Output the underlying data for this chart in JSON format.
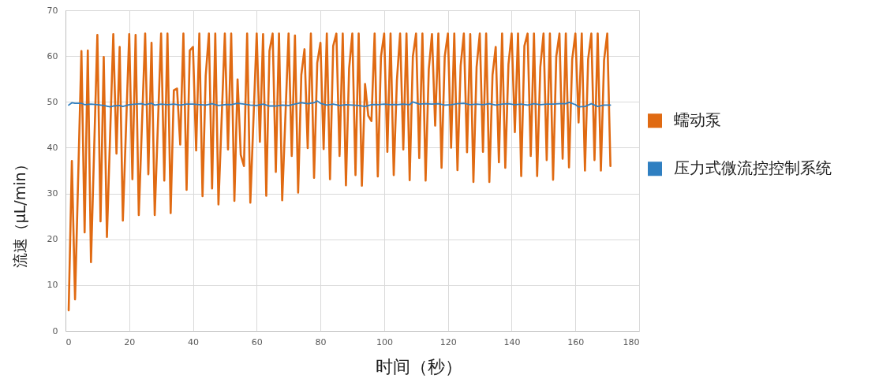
{
  "chart_data": {
    "type": "line",
    "xlabel": "时间（秒）",
    "ylabel": "流速（μL/min）",
    "xlim": [
      0,
      180
    ],
    "xticks": [
      0,
      20,
      40,
      60,
      80,
      100,
      120,
      140,
      160,
      180
    ],
    "ylim": [
      0,
      70
    ],
    "yticks": [
      0,
      10,
      20,
      30,
      40,
      50,
      60,
      70
    ],
    "grid": true,
    "legend": "right",
    "marker": "none",
    "line_style": "solid",
    "series": [
      {
        "name": "蠕动泵",
        "color": "#e06a12",
        "x": [
          1,
          2,
          3,
          5,
          6,
          7,
          8,
          10,
          11,
          12,
          13,
          15,
          16,
          17,
          18,
          20,
          21,
          22,
          23,
          25,
          26,
          27,
          28,
          30,
          31,
          32,
          33,
          34,
          35,
          36,
          37,
          38,
          39,
          40,
          41,
          42,
          43,
          44,
          45,
          46,
          47,
          48,
          50,
          51,
          52,
          53,
          54,
          55,
          56,
          57,
          58,
          60,
          61,
          62,
          63,
          64,
          65,
          66,
          67,
          68,
          70,
          71,
          72,
          73,
          74,
          75,
          76,
          77,
          78,
          79,
          80,
          81,
          82,
          83,
          84,
          85,
          86,
          87,
          88,
          89,
          90,
          91,
          92,
          93,
          94,
          95,
          96,
          97,
          98,
          99,
          100,
          101,
          102,
          103,
          104,
          105,
          106,
          107,
          108,
          109,
          110,
          111,
          112,
          113,
          114,
          115,
          116,
          117,
          118,
          119,
          120,
          121,
          122,
          123,
          124,
          125,
          126,
          127,
          128,
          129,
          130,
          131,
          132,
          133,
          134,
          135,
          136,
          137,
          138,
          139,
          140,
          141,
          142,
          143,
          144,
          145,
          146,
          147,
          148,
          149,
          150,
          151,
          152,
          153,
          154,
          155,
          156,
          157,
          158,
          159,
          160,
          161,
          162,
          163,
          164,
          165,
          166,
          167,
          168,
          169,
          170,
          171
        ],
        "values": [
          4.5,
          37.1,
          6.9,
          61.1,
          21.5,
          61.2,
          15.0,
          64.6,
          23.9,
          59.8,
          20.5,
          64.8,
          38.7,
          62.0,
          24.1,
          64.8,
          33.1,
          64.6,
          25.3,
          64.9,
          34.2,
          62.9,
          25.3,
          64.9,
          32.8,
          64.9,
          25.7,
          52.5,
          52.9,
          40.7,
          64.9,
          30.8,
          61.2,
          62.0,
          39.4,
          64.9,
          29.4,
          55.7,
          64.9,
          31.1,
          64.9,
          27.6,
          64.9,
          39.6,
          64.9,
          28.4,
          54.9,
          38.4,
          36.0,
          64.9,
          28.0,
          64.9,
          41.3,
          64.8,
          29.5,
          61.1,
          64.9,
          34.7,
          64.9,
          28.5,
          64.9,
          38.2,
          64.5,
          30.2,
          55.9,
          61.5,
          39.9,
          64.9,
          33.4,
          58.5,
          62.9,
          39.7,
          64.9,
          33.1,
          62.2,
          64.9,
          38.2,
          64.9,
          31.8,
          57.3,
          64.9,
          34.0,
          64.9,
          31.7,
          53.9,
          47.0,
          45.8,
          64.9,
          33.7,
          59.9,
          64.9,
          39.1,
          64.9,
          34.0,
          54.8,
          64.9,
          39.6,
          64.9,
          32.9,
          59.9,
          64.9,
          37.7,
          64.9,
          32.8,
          57.1,
          64.8,
          44.8,
          64.9,
          35.6,
          59.9,
          64.9,
          40.0,
          64.9,
          35.1,
          57.9,
          64.9,
          39.0,
          64.8,
          32.5,
          57.6,
          64.9,
          39.1,
          64.9,
          32.5,
          55.9,
          62.0,
          36.8,
          64.9,
          35.6,
          58.2,
          64.9,
          43.4,
          64.9,
          33.8,
          62.2,
          64.9,
          38.2,
          64.9,
          33.8,
          57.6,
          64.9,
          37.3,
          64.9,
          33.0,
          59.9,
          64.9,
          37.6,
          64.9,
          35.7,
          59.3,
          64.9,
          45.5,
          64.9,
          35.0,
          59.3,
          64.9,
          37.3,
          64.9,
          35.0,
          59.1,
          64.9,
          36.0
        ]
      },
      {
        "name": "压力式微流控控制系统",
        "color": "#2f7fc1",
        "x": [
          1,
          2,
          3,
          5,
          6,
          8,
          10,
          12,
          14,
          15,
          17,
          18,
          20,
          22,
          24,
          25,
          27,
          28,
          30,
          32,
          34,
          36,
          38,
          40,
          42,
          44,
          46,
          48,
          50,
          52,
          54,
          56,
          58,
          60,
          62,
          64,
          66,
          68,
          70,
          72,
          74,
          76,
          78,
          79,
          80,
          82,
          84,
          86,
          88,
          90,
          92,
          94,
          96,
          98,
          100,
          102,
          104,
          106,
          108,
          109,
          111,
          113,
          115,
          117,
          119,
          121,
          123,
          125,
          127,
          129,
          131,
          133,
          135,
          137,
          139,
          141,
          143,
          145,
          147,
          149,
          151,
          153,
          155,
          157,
          158,
          160,
          161,
          163,
          165,
          167,
          169,
          171
        ],
        "values": [
          49.3,
          49.8,
          49.7,
          49.7,
          49.4,
          49.5,
          49.4,
          49.2,
          48.9,
          49.1,
          49.2,
          49.0,
          49.4,
          49.5,
          49.6,
          49.4,
          49.7,
          49.3,
          49.5,
          49.4,
          49.5,
          49.3,
          49.5,
          49.5,
          49.4,
          49.3,
          49.6,
          49.2,
          49.4,
          49.4,
          49.7,
          49.5,
          49.3,
          49.2,
          49.5,
          49.1,
          49.1,
          49.3,
          49.2,
          49.5,
          49.8,
          49.6,
          49.8,
          50.2,
          49.7,
          49.3,
          49.5,
          49.2,
          49.4,
          49.3,
          49.2,
          49.0,
          49.4,
          49.4,
          49.5,
          49.4,
          49.4,
          49.5,
          49.4,
          50.0,
          49.5,
          49.6,
          49.5,
          49.6,
          49.3,
          49.4,
          49.6,
          49.7,
          49.4,
          49.5,
          49.4,
          49.6,
          49.3,
          49.5,
          49.6,
          49.4,
          49.5,
          49.3,
          49.6,
          49.4,
          49.5,
          49.5,
          49.6,
          49.6,
          49.9,
          49.4,
          48.9,
          49.0,
          49.6,
          49.0,
          49.3,
          49.3
        ]
      }
    ]
  }
}
